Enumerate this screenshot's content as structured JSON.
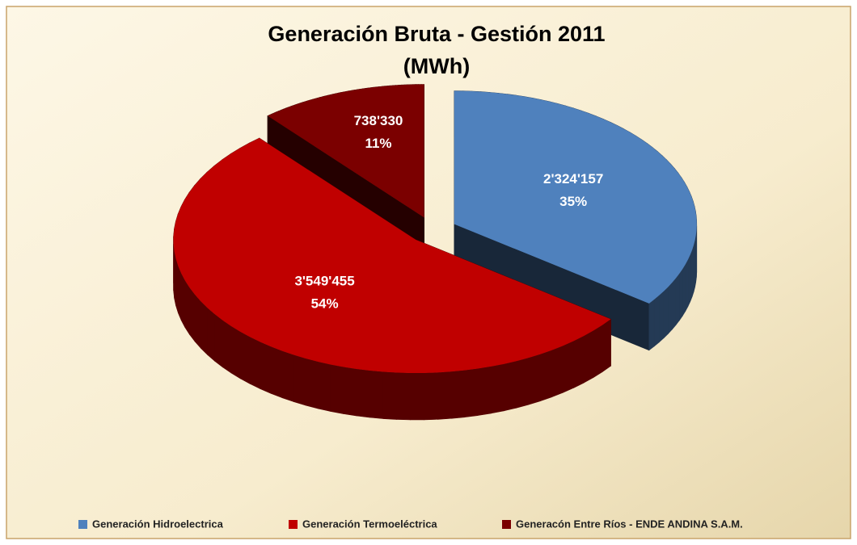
{
  "chart_data": {
    "type": "pie3d",
    "title": "Generación Bruta - Gestión 2011",
    "subtitle": "(MWh)",
    "categories": [
      "Generación Hidroelectrica",
      "Generación Termoeléctrica",
      "Generacón Entre Ríos - ENDE ANDINA S.A.M."
    ],
    "values": [
      2324157,
      3549455,
      738330
    ],
    "value_labels": [
      "2'324'157",
      "3'549'455",
      "738'330"
    ],
    "percentages": [
      35,
      54,
      11
    ],
    "percentage_labels": [
      "35%",
      "54%",
      "11%"
    ],
    "colors": [
      "#4f81bd",
      "#c00000",
      "#7b0000"
    ],
    "legend": "bottom"
  }
}
